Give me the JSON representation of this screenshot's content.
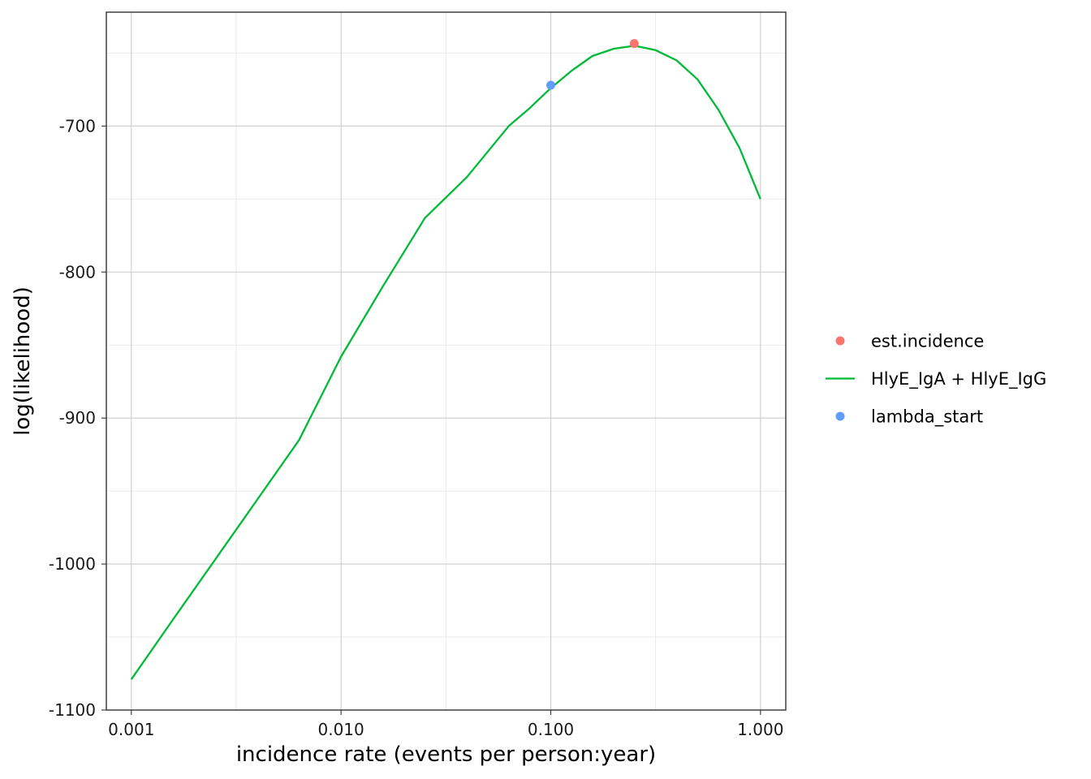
{
  "chart_data": {
    "type": "line",
    "title": "",
    "xlabel": "incidence rate (events per person:year)",
    "ylabel": "log(likelihood)",
    "x_scale": "log10",
    "xlim": [
      0.00076,
      1.32
    ],
    "ylim": [
      -1100,
      -622
    ],
    "x_ticks": [
      {
        "value": 0.001,
        "label": "0.001"
      },
      {
        "value": 0.01,
        "label": "0.010"
      },
      {
        "value": 0.1,
        "label": "0.100"
      },
      {
        "value": 1,
        "label": "1.000"
      }
    ],
    "x_minor_ticks": [
      0.00316,
      0.0316,
      0.316
    ],
    "y_ticks": [
      {
        "value": -1100,
        "label": "-1100"
      },
      {
        "value": -1000,
        "label": "-1000"
      },
      {
        "value": -900,
        "label": "-900"
      },
      {
        "value": -800,
        "label": "-800"
      },
      {
        "value": -700,
        "label": "-700"
      }
    ],
    "y_minor_ticks": [
      -1050,
      -950,
      -850,
      -750,
      -650
    ],
    "grid": true,
    "legend_position": "right",
    "series": [
      {
        "name": "HlyE_IgA + HlyE_IgG",
        "kind": "line",
        "color": "#00ba38",
        "x": [
          0.001,
          0.00158,
          0.00251,
          0.00398,
          0.00631,
          0.01,
          0.0158,
          0.0251,
          0.0398,
          0.0631,
          0.079,
          0.1,
          0.126,
          0.158,
          0.2,
          0.251,
          0.316,
          0.398,
          0.501,
          0.631,
          0.794,
          1.0
        ],
        "y": [
          -1079,
          -1038,
          -997,
          -956,
          -915,
          -858,
          -810,
          -763,
          -735,
          -700,
          -688,
          -674,
          -662,
          -652,
          -647,
          -645,
          -648,
          -655,
          -668,
          -689,
          -715,
          -750
        ]
      },
      {
        "name": "est.incidence",
        "kind": "point",
        "color": "#f8766d",
        "x": [
          0.25
        ],
        "y": [
          -643.5
        ]
      },
      {
        "name": "lambda_start",
        "kind": "point",
        "color": "#619cff",
        "x": [
          0.1
        ],
        "y": [
          -672
        ]
      }
    ],
    "legend_order": [
      "est.incidence",
      "HlyE_IgA + HlyE_IgG",
      "lambda_start"
    ]
  }
}
